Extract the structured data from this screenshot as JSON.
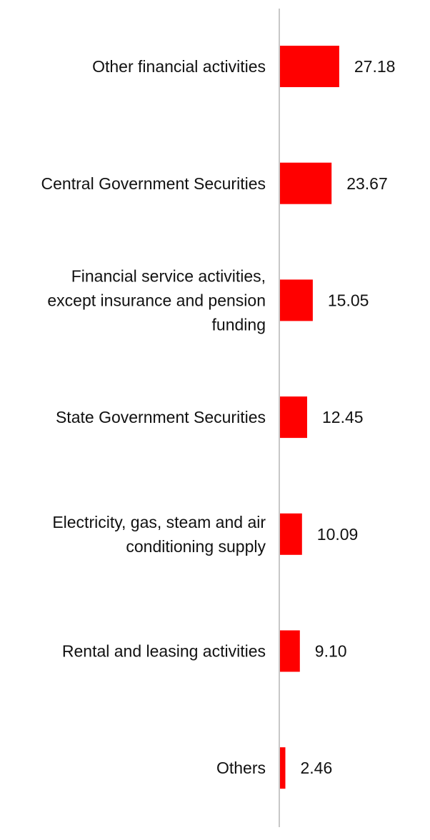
{
  "chart_data": {
    "type": "bar",
    "orientation": "horizontal",
    "categories": [
      [
        "Other financial activities"
      ],
      [
        "Central Government Securities"
      ],
      [
        "Financial service activities,",
        "except insurance and pension",
        "funding"
      ],
      [
        "State Government Securities"
      ],
      [
        "Electricity, gas, steam and air",
        "conditioning supply"
      ],
      [
        "Rental and leasing activities"
      ],
      [
        "Others"
      ]
    ],
    "values": [
      27.18,
      23.67,
      15.05,
      12.45,
      10.09,
      9.1,
      2.46
    ],
    "value_labels": [
      "27.18",
      "23.67",
      "15.05",
      "12.45",
      "10.09",
      "9.10",
      "2.46"
    ],
    "title": "",
    "xlabel": "",
    "ylabel": "",
    "xlim": [
      0,
      100
    ],
    "grid": false,
    "legend": "none",
    "bar_color": "#ff0000",
    "axis_color": "#c8c8c8"
  }
}
